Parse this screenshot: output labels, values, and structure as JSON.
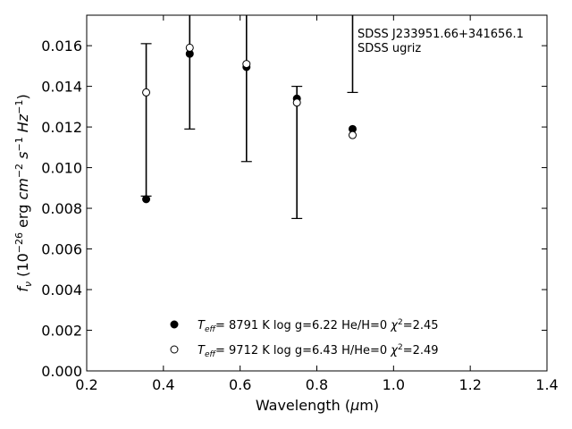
{
  "chart_data": {
    "type": "scatter",
    "title": "",
    "xlabel": "Wavelength (μm)",
    "ylabel": "fν (10⁻²⁶ erg cm⁻² s⁻¹ Hz⁻¹)",
    "xlim": [
      0.2,
      1.4
    ],
    "ylim": [
      0.0,
      0.0175
    ],
    "x_ticks": [
      "0.2",
      "0.4",
      "0.6",
      "0.8",
      "1.0",
      "1.2",
      "1.4"
    ],
    "y_ticks": [
      "0.000",
      "0.002",
      "0.004",
      "0.006",
      "0.008",
      "0.010",
      "0.012",
      "0.014",
      "0.016"
    ],
    "annotations": [
      "SDSS J233951.66+341656.1",
      "SDSS ugriz"
    ],
    "observed": {
      "x": [
        0.3551,
        0.4686,
        0.6166,
        0.748,
        0.8932
      ],
      "y": [
        0.0137,
        0.0159,
        0.0151,
        0.0132,
        0.0116
      ],
      "err_low": [
        0.0086,
        0.0119,
        0.0103,
        0.0075,
        0.0137
      ],
      "err_high": [
        0.0161,
        0.0178,
        0.0178,
        0.014,
        0.0178
      ]
    },
    "series": [
      {
        "name": "Teff=  8791 K  log g=6.22  He/H=0  χ²=2.45",
        "marker": "filled-circle",
        "color": "#000000",
        "x": [
          0.3551,
          0.4686,
          0.6166,
          0.748,
          0.8932
        ],
        "y": [
          0.00845,
          0.0156,
          0.01495,
          0.0134,
          0.0119
        ]
      },
      {
        "name": "Teff=  9712 K  log g=6.43  H/He=0  χ²=2.49",
        "marker": "open-circle",
        "color": "#000000",
        "x": [
          0.3551,
          0.4686,
          0.6166,
          0.748,
          0.8932
        ],
        "y": [
          0.0137,
          0.0159,
          0.0151,
          0.0132,
          0.0116
        ]
      }
    ],
    "legend_position": "bottom-center",
    "grid": false
  }
}
